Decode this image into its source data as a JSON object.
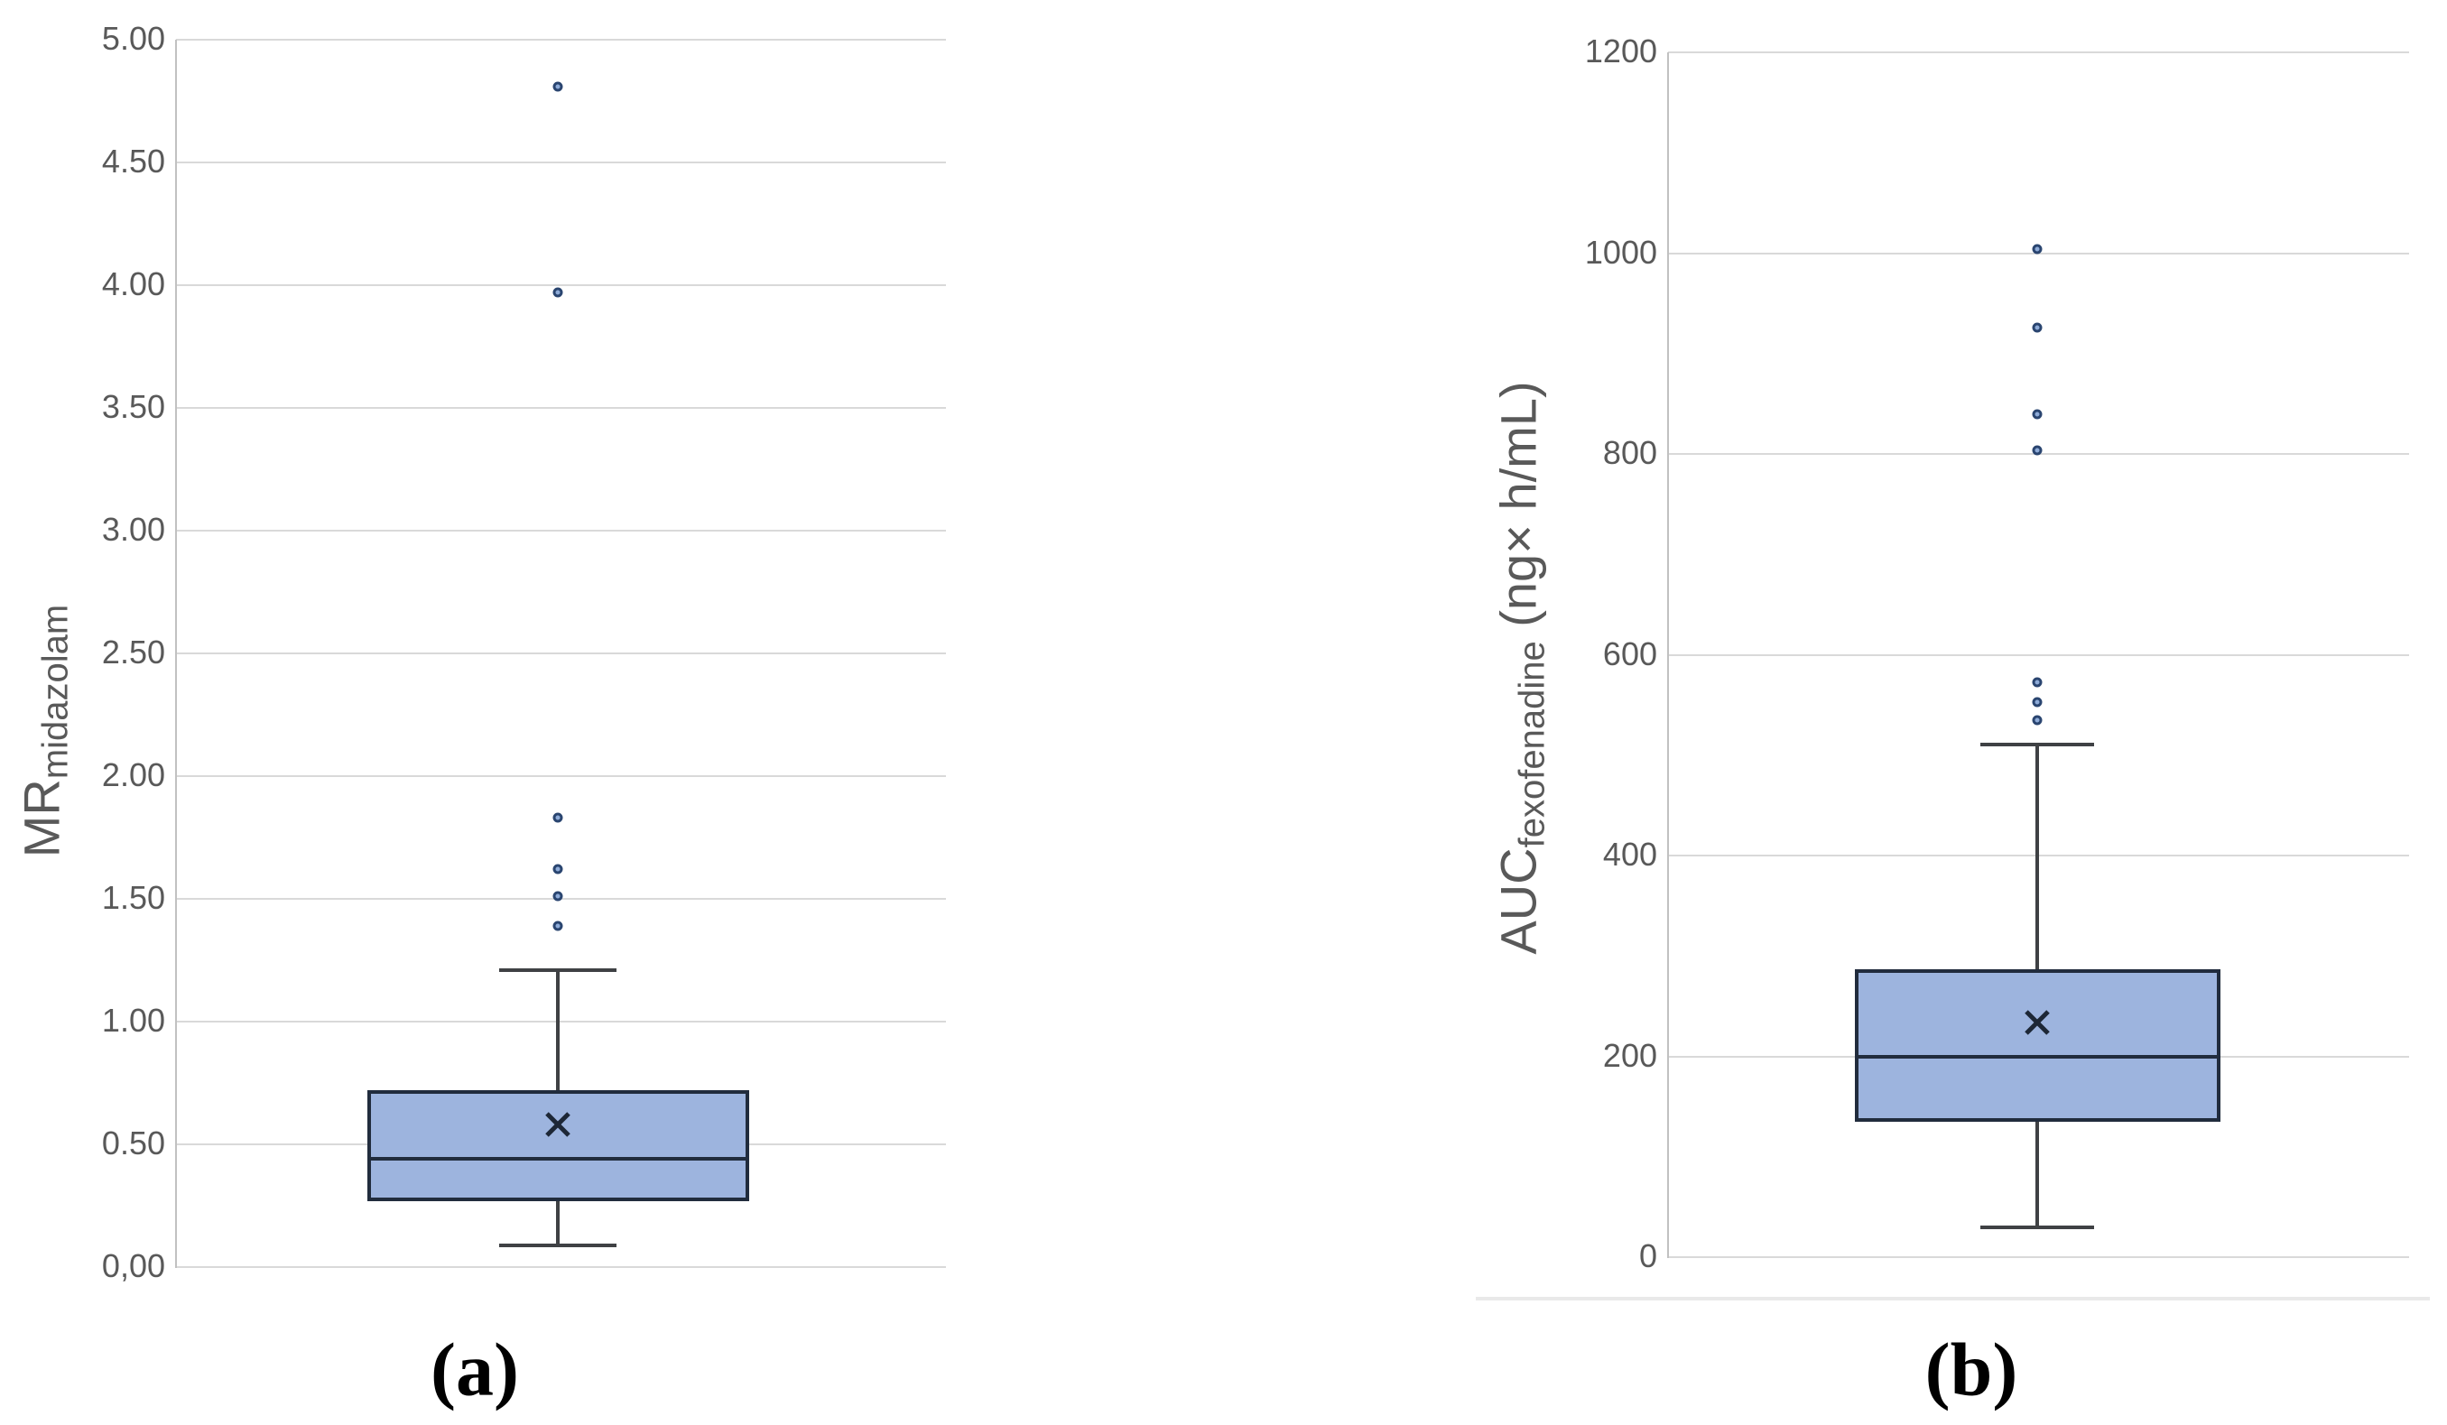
{
  "chart_data": [
    {
      "type": "box",
      "panel": "(a)",
      "ylabel_main": "MR",
      "ylabel_sub": "midazolam",
      "ylabel_unit": "",
      "ylim": [
        0,
        5
      ],
      "grid": "horizontal-only",
      "legend": "none",
      "yticks": [
        5,
        4.5,
        4,
        3.5,
        3,
        2.5,
        2,
        1.5,
        1,
        0.5,
        0
      ],
      "ytick_labels": [
        "5.00",
        "4.50",
        "4.00",
        "3.50",
        "3.00",
        "2.50",
        "2.00",
        "1.50",
        "1.00",
        "0.50",
        "0,00"
      ],
      "series": [
        {
          "name": "MR midazolam",
          "whisker_low": 0.09,
          "q1": 0.27,
          "median": 0.44,
          "q3": 0.72,
          "whisker_high": 1.21,
          "mean": 0.58,
          "outliers": [
            1.39,
            1.51,
            1.62,
            1.83,
            3.97,
            4.81
          ]
        }
      ]
    },
    {
      "type": "box",
      "panel": "(b)",
      "ylabel_main": "AUC",
      "ylabel_sub": "fexofenadine",
      "ylabel_unit": " (ng× h/mL)",
      "ylim": [
        0,
        1200
      ],
      "grid": "horizontal-only",
      "legend": "none",
      "yticks": [
        1200,
        1000,
        800,
        600,
        400,
        200,
        0
      ],
      "ytick_labels": [
        "1200",
        "1000",
        "800",
        "600",
        "400",
        "200",
        "0"
      ],
      "series": [
        {
          "name": "AUC fexofenadine",
          "whisker_low": 30,
          "q1": 135,
          "median": 200,
          "q3": 287,
          "whisker_high": 511,
          "mean": 234,
          "outliers": [
            535,
            553,
            573,
            804,
            840,
            926,
            1004
          ]
        }
      ]
    }
  ],
  "colors": {
    "box_fill": "#9db4de",
    "box_border": "#212c3d",
    "whisker": "#3f4144",
    "outlier_ring": "#2a4570",
    "outlier_fill": "#8eabd8",
    "gridline": "#d9d9d9",
    "axis_line": "#c1c1c1",
    "tick_text": "#595959",
    "caption_text": "#000000"
  }
}
